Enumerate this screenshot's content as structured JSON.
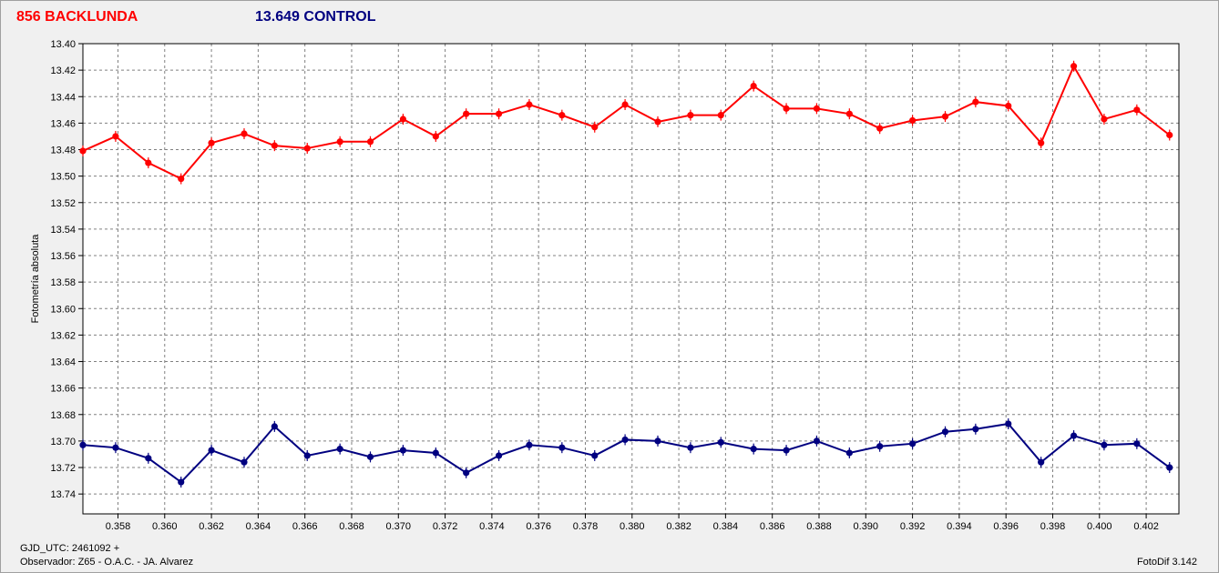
{
  "chart_data": {
    "type": "line",
    "titles": [
      {
        "text": "856 BACKLUNDA",
        "color": "#ff0000"
      },
      {
        "text": "13.649 CONTROL",
        "color": "#000080"
      }
    ],
    "ylabel": "Fotometría absoluta",
    "xlabel": "",
    "xlim": [
      0.3565,
      0.4034
    ],
    "ylim": [
      13.4,
      13.755
    ],
    "y_inverted": true,
    "grid": true,
    "x_ticks": [
      "0.358",
      "0.360",
      "0.362",
      "0.364",
      "0.366",
      "0.368",
      "0.370",
      "0.372",
      "0.374",
      "0.376",
      "0.378",
      "0.380",
      "0.382",
      "0.384",
      "0.386",
      "0.388",
      "0.390",
      "0.392",
      "0.394",
      "0.396",
      "0.398",
      "0.400",
      "0.402"
    ],
    "y_ticks": [
      "13.40",
      "13.42",
      "13.44",
      "13.46",
      "13.48",
      "13.50",
      "13.52",
      "13.54",
      "13.56",
      "13.58",
      "13.60",
      "13.62",
      "13.64",
      "13.66",
      "13.68",
      "13.70",
      "13.72",
      "13.74"
    ],
    "x": [
      0.3565,
      0.3579,
      0.3593,
      0.3607,
      0.362,
      0.3634,
      0.3647,
      0.3661,
      0.3675,
      0.3688,
      0.3702,
      0.3716,
      0.3729,
      0.3743,
      0.3756,
      0.377,
      0.3784,
      0.3797,
      0.3811,
      0.3825,
      0.3838,
      0.3852,
      0.3866,
      0.3879,
      0.3893,
      0.3906,
      0.392,
      0.3934,
      0.3947,
      0.3961,
      0.3975,
      0.3989,
      0.4002,
      0.4016,
      0.403
    ],
    "series": [
      {
        "name": "856 BACKLUNDA",
        "color": "#ff0000",
        "values": [
          13.481,
          13.47,
          13.49,
          13.502,
          13.475,
          13.468,
          13.477,
          13.479,
          13.474,
          13.474,
          13.457,
          13.47,
          13.453,
          13.453,
          13.446,
          13.454,
          13.463,
          13.446,
          13.459,
          13.454,
          13.454,
          13.432,
          13.449,
          13.449,
          13.453,
          13.464,
          13.458,
          13.455,
          13.444,
          13.447,
          13.475,
          13.417,
          13.457,
          13.45,
          13.469
        ]
      },
      {
        "name": "13.649 CONTROL",
        "color": "#000080",
        "values": [
          13.703,
          13.705,
          13.713,
          13.731,
          13.707,
          13.716,
          13.689,
          13.711,
          13.706,
          13.712,
          13.707,
          13.709,
          13.724,
          13.711,
          13.703,
          13.705,
          13.711,
          13.699,
          13.7,
          13.705,
          13.701,
          13.706,
          13.707,
          13.7,
          13.709,
          13.704,
          13.702,
          13.693,
          13.691,
          13.687,
          13.716,
          13.696,
          13.703,
          13.702,
          13.72
        ]
      }
    ]
  },
  "footer": {
    "gjd": "GJD_UTC: 2461092 +",
    "observer": "Observador: Z65 - O.A.C. - JA. Alvarez",
    "software": "FotoDif 3.142"
  }
}
